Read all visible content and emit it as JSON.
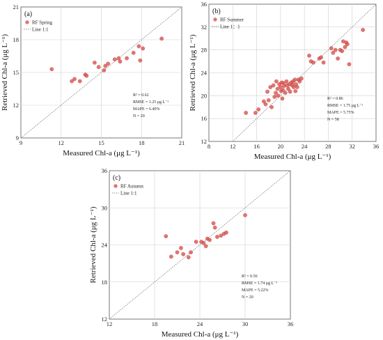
{
  "chart_data": [
    {
      "type": "scatter",
      "panel_label": "(a)",
      "xlabel": "Measured Chl-a (μg L⁻¹)",
      "ylabel": "Retrieved Chl-a (μg L⁻¹)",
      "xlim": [
        9,
        21
      ],
      "ylim": [
        9,
        21
      ],
      "xticks": [
        "9",
        "12",
        "15",
        "18",
        "21"
      ],
      "yticks": [
        "9",
        "12",
        "15",
        "18",
        "21"
      ],
      "grid": true,
      "legend_position": "top-left",
      "series": [
        {
          "name": "RF Spring",
          "color": "#d9534f",
          "x": [
            11.3,
            12.8,
            13.0,
            13.4,
            13.8,
            13.9,
            14.5,
            14.8,
            15.2,
            15.3,
            15.5,
            16.0,
            16.3,
            16.4,
            16.9,
            17.4,
            17.8,
            17.9,
            18.1,
            19.5
          ],
          "y": [
            15.3,
            14.2,
            14.4,
            14.2,
            14.8,
            14.7,
            15.9,
            15.5,
            15.2,
            15.6,
            15.8,
            16.2,
            16.3,
            16.0,
            16.3,
            16.8,
            17.4,
            16.1,
            17.2,
            18.1
          ]
        }
      ],
      "identity_line": {
        "name": "Line 1:1"
      },
      "stats": {
        "r2_label": "R² = 0.62",
        "rmse": "RMSE = 1.25 μg L⁻¹",
        "mape": "MAPE = 6.40%",
        "n": "N = 20"
      }
    },
    {
      "type": "scatter",
      "panel_label": "(b)",
      "xlabel": "Measured Chl-a (μg L⁻¹)",
      "ylabel": "Retrieved Chl-a (μg L⁻¹)",
      "xlim": [
        8,
        36
      ],
      "ylim": [
        12,
        36
      ],
      "xticks": [
        "8",
        "12",
        "16",
        "20",
        "24",
        "28",
        "32",
        "36"
      ],
      "yticks": [
        "12",
        "16",
        "20",
        "24",
        "28",
        "32",
        "36"
      ],
      "grid": true,
      "legend_position": "top-left",
      "series": [
        {
          "name": "RF Summer",
          "color": "#d9534f",
          "x": [
            14.2,
            15.8,
            16.3,
            17.2,
            17.5,
            17.8,
            18.0,
            18.3,
            18.5,
            18.8,
            19.0,
            19.2,
            19.3,
            19.5,
            19.6,
            19.8,
            20.0,
            20.1,
            20.2,
            20.3,
            20.4,
            20.5,
            20.6,
            20.8,
            21.0,
            21.1,
            21.3,
            21.5,
            21.6,
            21.8,
            22.0,
            22.1,
            22.2,
            22.4,
            22.5,
            22.6,
            22.8,
            23.0,
            23.2,
            23.5,
            24.8,
            25.1,
            25.5,
            26.5,
            26.8,
            27.2,
            28.5,
            28.8,
            29.2,
            29.6,
            30.0,
            30.5,
            30.8,
            31.0,
            31.2,
            31.5,
            33.8,
            30.3
          ],
          "y": [
            17.0,
            17.0,
            17.6,
            19.0,
            18.5,
            20.7,
            19.2,
            21.5,
            18.0,
            21.8,
            19.8,
            20.5,
            22.5,
            21.2,
            20.0,
            22.0,
            21.5,
            20.8,
            22.3,
            19.5,
            21.0,
            22.2,
            21.7,
            20.5,
            22.5,
            21.8,
            21.2,
            22.0,
            20.7,
            22.3,
            21.8,
            22.5,
            21.5,
            22.8,
            20.8,
            22.0,
            21.5,
            22.8,
            22.5,
            23.0,
            27.0,
            26.0,
            25.8,
            26.5,
            26.7,
            25.8,
            28.3,
            27.5,
            28.0,
            26.5,
            28.0,
            29.5,
            28.5,
            29.3,
            29.0,
            25.5,
            31.5,
            27.8
          ]
        }
      ],
      "identity_line": {
        "name": "Line 1：1"
      },
      "stats": {
        "r2_label": "R² = 0.86",
        "rmse": "RMSE = 1.75 μg L⁻¹",
        "mape": "MAPE = 5.75%",
        "n": "N = 58"
      }
    },
    {
      "type": "scatter",
      "panel_label": "(c)",
      "xlabel": "Measured Chl-a (μg L⁻¹)",
      "ylabel": "Retrieved Chl-a (μg L⁻¹)",
      "xlim": [
        12,
        36
      ],
      "ylim": [
        12,
        36
      ],
      "xticks": [
        "12",
        "18",
        "24",
        "30",
        "36"
      ],
      "yticks": [
        "12",
        "18",
        "24",
        "30",
        "36"
      ],
      "grid": true,
      "legend_position": "top-left",
      "series": [
        {
          "name": "RF Autumn",
          "color": "#d9534f",
          "x": [
            19.5,
            20.2,
            21.0,
            21.5,
            21.8,
            22.5,
            22.8,
            23.5,
            24.2,
            24.5,
            24.8,
            25.0,
            25.3,
            25.8,
            26.0,
            26.3,
            26.8,
            27.2,
            27.5,
            30.0
          ],
          "y": [
            25.4,
            22.1,
            22.8,
            23.5,
            22.5,
            22.0,
            22.8,
            24.5,
            24.5,
            24.3,
            23.8,
            25.0,
            24.8,
            27.5,
            26.8,
            25.3,
            25.5,
            25.8,
            26.0,
            28.8
          ]
        }
      ],
      "identity_line": {
        "name": "Line 1:1"
      },
      "stats": {
        "r2_label": "R² = 0.56",
        "rmse": "RMSE = 1.74 μg L⁻¹",
        "mape": "MAPE = 5.22%",
        "n": "N = 20"
      }
    }
  ]
}
